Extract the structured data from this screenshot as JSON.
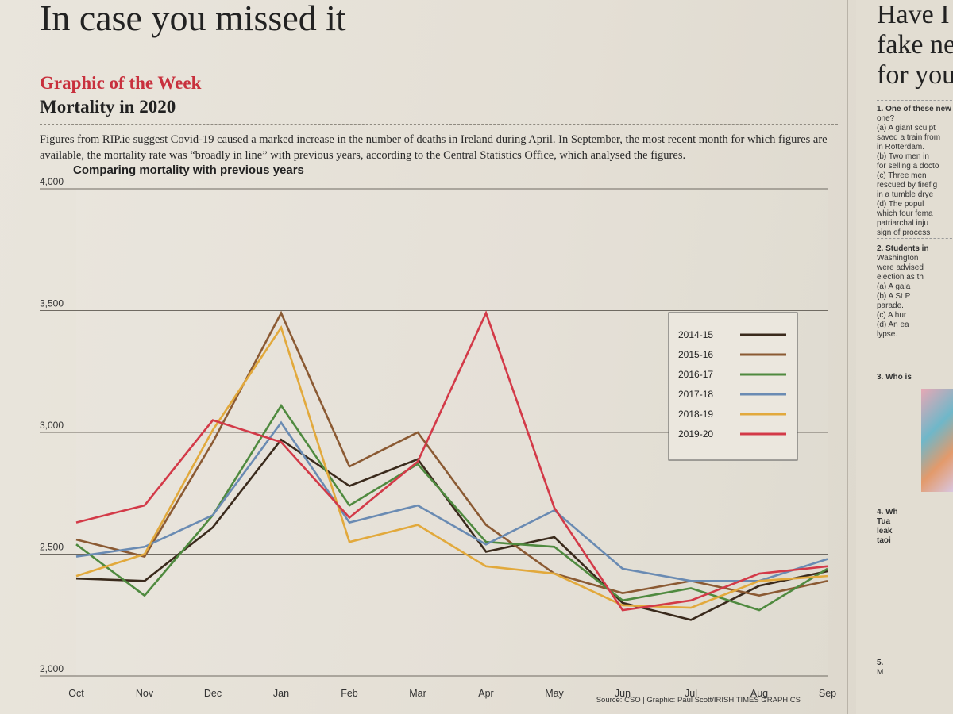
{
  "page": {
    "headline": "In case you missed it",
    "kicker": "Graphic of the Week",
    "subhead": "Mortality in 2020",
    "intro": "Figures from RIP.ie suggest Covid-19 caused a marked increase in the number of deaths in Ireland during April. In September, the most recent month for which figures are available, the mortality rate was “broadly in line” with previous years, according to the Central Statistics Office, which analysed the figures."
  },
  "right_column": {
    "title_lines": [
      "Have I g",
      "fake ne",
      "for you"
    ],
    "q1": [
      "1. One of these new",
      "one?",
      "(a) A giant sculpt",
      "saved a train from",
      "in Rotterdam.",
      "(b) Two men in",
      "for selling a docto",
      "(c) Three men",
      "rescued by firefig",
      "in a tumble drye",
      "(d) The popul",
      "which four fema",
      "patriarchal inju",
      "sign of process"
    ],
    "q2": [
      "2. Students in",
      "Washington",
      "were advised",
      "election as th",
      "(a) A gala",
      "(b) A St P",
      "parade.",
      "(c) A hur",
      "(d) An ea",
      "lypse."
    ],
    "q3": [
      "3. Who is"
    ],
    "q4": [
      "4. Wh",
      "Tua",
      "leak",
      "taoi"
    ],
    "q5": [
      "5.",
      "M"
    ]
  },
  "chart_data": {
    "type": "line",
    "title": "Comparing mortality with previous years",
    "categories": [
      "Oct",
      "Nov",
      "Dec",
      "Jan",
      "Feb",
      "Mar",
      "Apr",
      "May",
      "Jun",
      "Jul",
      "Aug",
      "Sep"
    ],
    "ylim": [
      2000,
      4000
    ],
    "yticks": [
      2000,
      2500,
      3000,
      3500,
      4000
    ],
    "ytick_labels": [
      "2,000",
      "2,500",
      "3,000",
      "3,500",
      "4,000"
    ],
    "grid": "horizontal",
    "legend_position": "top-right",
    "source": "Source: CSO  |  Graphic: Paul Scott/IRISH TIMES GRAPHICS",
    "series": [
      {
        "name": "2014-15",
        "color": "#3a2a1c",
        "values": [
          2400,
          2390,
          2610,
          2970,
          2780,
          2890,
          2510,
          2570,
          2300,
          2230,
          2370,
          2430
        ]
      },
      {
        "name": "2015-16",
        "color": "#8b5a33",
        "values": [
          2560,
          2490,
          2960,
          3490,
          2860,
          3000,
          2620,
          2420,
          2340,
          2390,
          2330,
          2390
        ]
      },
      {
        "name": "2016-17",
        "color": "#4f8a3f",
        "values": [
          2540,
          2330,
          2660,
          3110,
          2700,
          2870,
          2550,
          2530,
          2310,
          2360,
          2270,
          2440
        ]
      },
      {
        "name": "2017-18",
        "color": "#6a8bb3",
        "values": [
          2490,
          2530,
          2660,
          3040,
          2630,
          2700,
          2540,
          2680,
          2440,
          2390,
          2390,
          2480
        ]
      },
      {
        "name": "2018-19",
        "color": "#e2a93c",
        "values": [
          2410,
          2500,
          3010,
          3430,
          2550,
          2620,
          2450,
          2420,
          2290,
          2280,
          2390,
          2410
        ]
      },
      {
        "name": "2019-20",
        "color": "#d33a48",
        "values": [
          2630,
          2700,
          3050,
          2960,
          2650,
          2880,
          3490,
          2690,
          2270,
          2310,
          2420,
          2450
        ]
      }
    ]
  }
}
